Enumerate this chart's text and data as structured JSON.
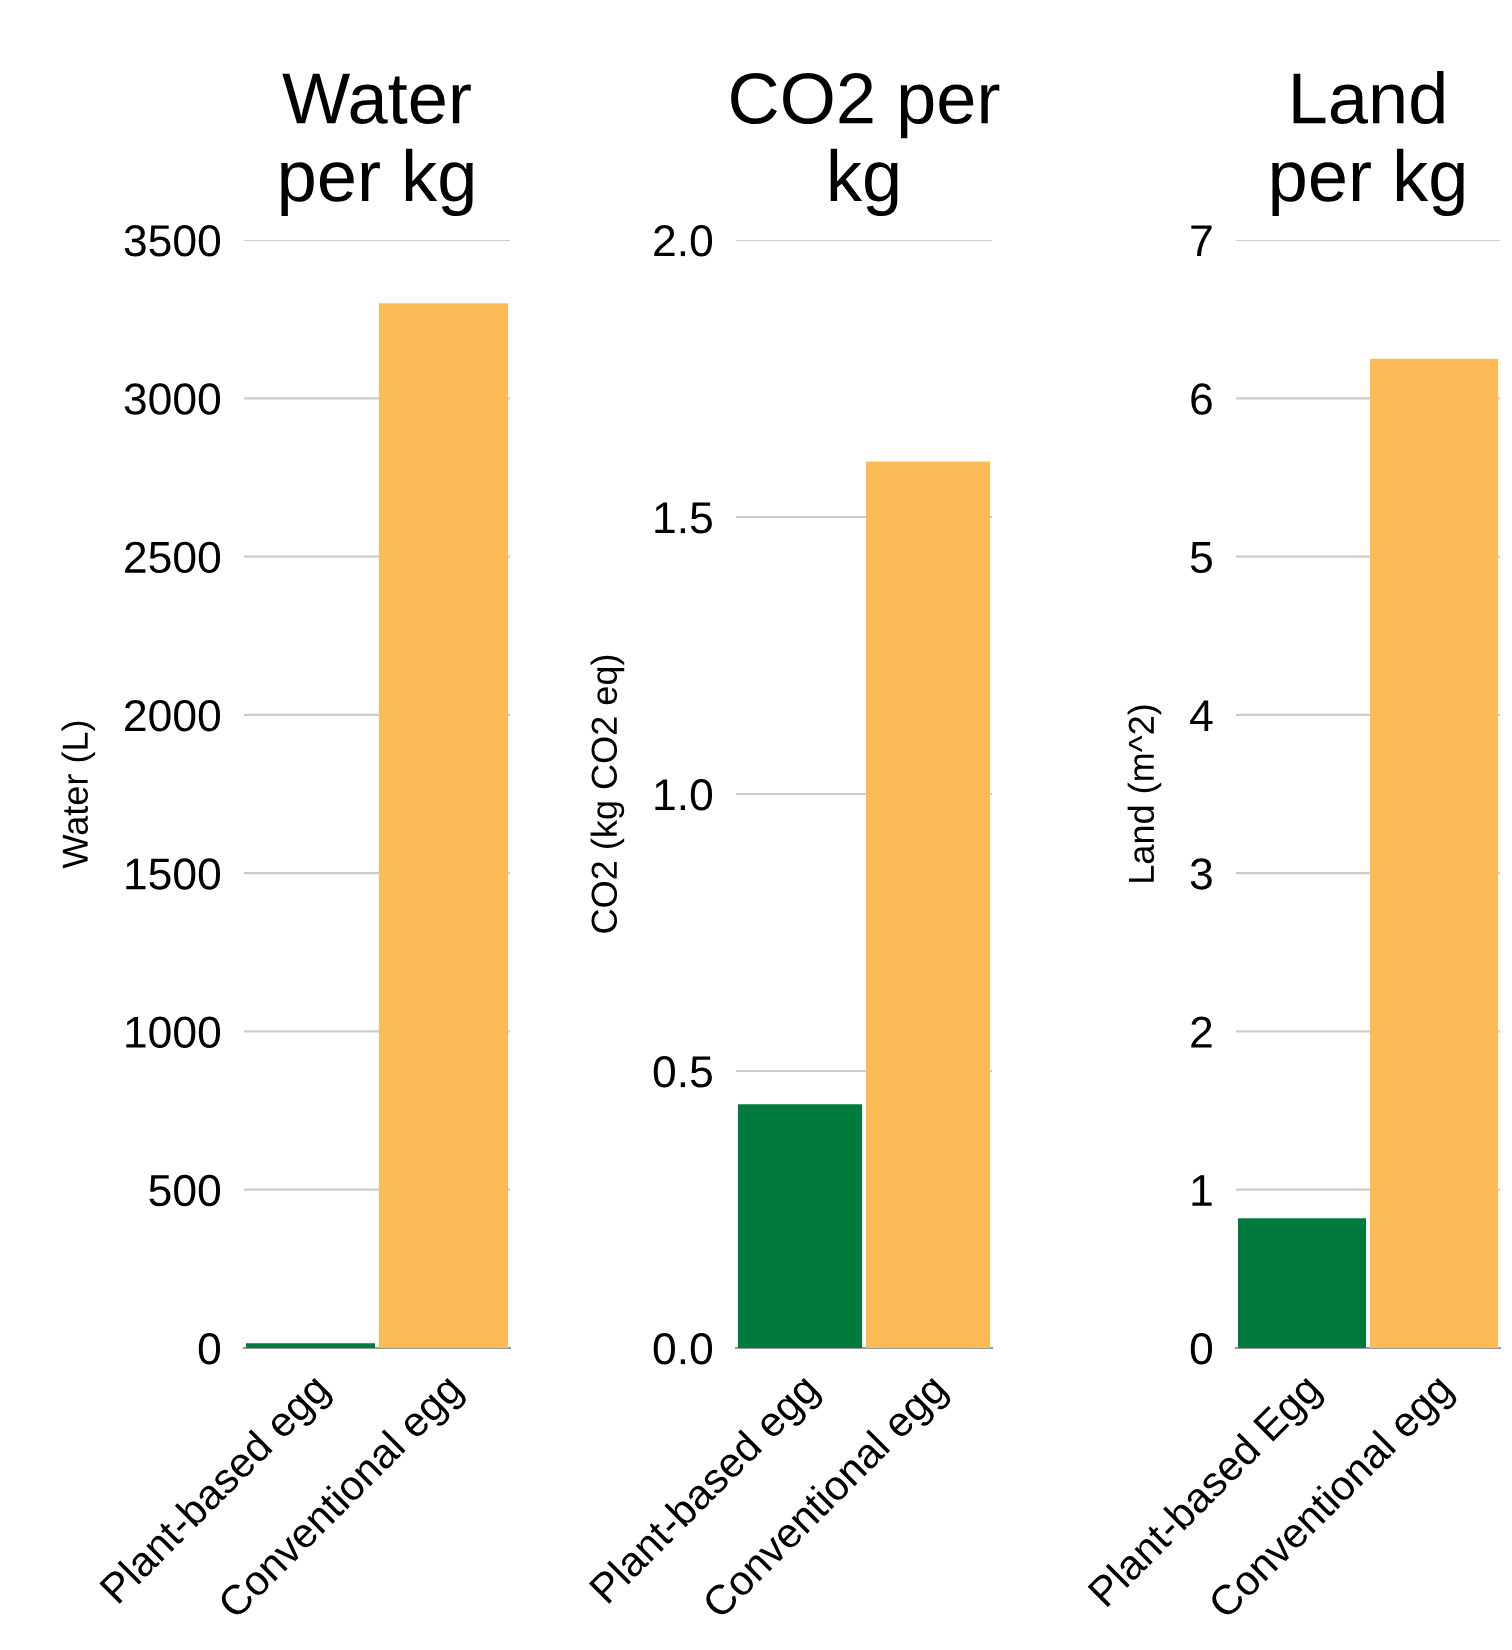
{
  "chart_data": [
    {
      "type": "bar",
      "title": "Water\nper kg",
      "ylabel": "Water (L)",
      "categories": [
        "Plant-based egg",
        "Conventional egg"
      ],
      "values": [
        15,
        3300
      ],
      "colors": [
        "#007a3d",
        "#fdbb58"
      ],
      "ylim": [
        0,
        3500
      ],
      "yticks": [
        0,
        500,
        1000,
        1500,
        2000,
        2500,
        3000,
        3500
      ],
      "grid": "y",
      "legend": false
    },
    {
      "type": "bar",
      "title": "CO2 per\nkg",
      "ylabel": "CO2 (kg CO2 eq)",
      "categories": [
        "Plant-based egg",
        "Conventional egg"
      ],
      "values": [
        0.44,
        1.6
      ],
      "colors": [
        "#007a3d",
        "#fdbb58"
      ],
      "ylim": [
        0,
        2.0
      ],
      "yticks": [
        {
          "value": 0,
          "label": "0.0"
        },
        0.5,
        {
          "value": 1,
          "label": "1.0"
        },
        1.5,
        {
          "value": 2,
          "label": "2.0"
        }
      ],
      "grid": "y",
      "legend": false
    },
    {
      "type": "bar",
      "title": "Land\nper kg",
      "ylabel": "Land (m^2)",
      "categories": [
        "Plant-based Egg",
        "Conventional egg"
      ],
      "values": [
        0.82,
        6.25
      ],
      "colors": [
        "#007a3d",
        "#fdbb58"
      ],
      "ylim": [
        0,
        7
      ],
      "yticks": [
        0,
        1,
        2,
        3,
        4,
        5,
        6,
        7
      ],
      "grid": "y",
      "legend": false
    }
  ]
}
